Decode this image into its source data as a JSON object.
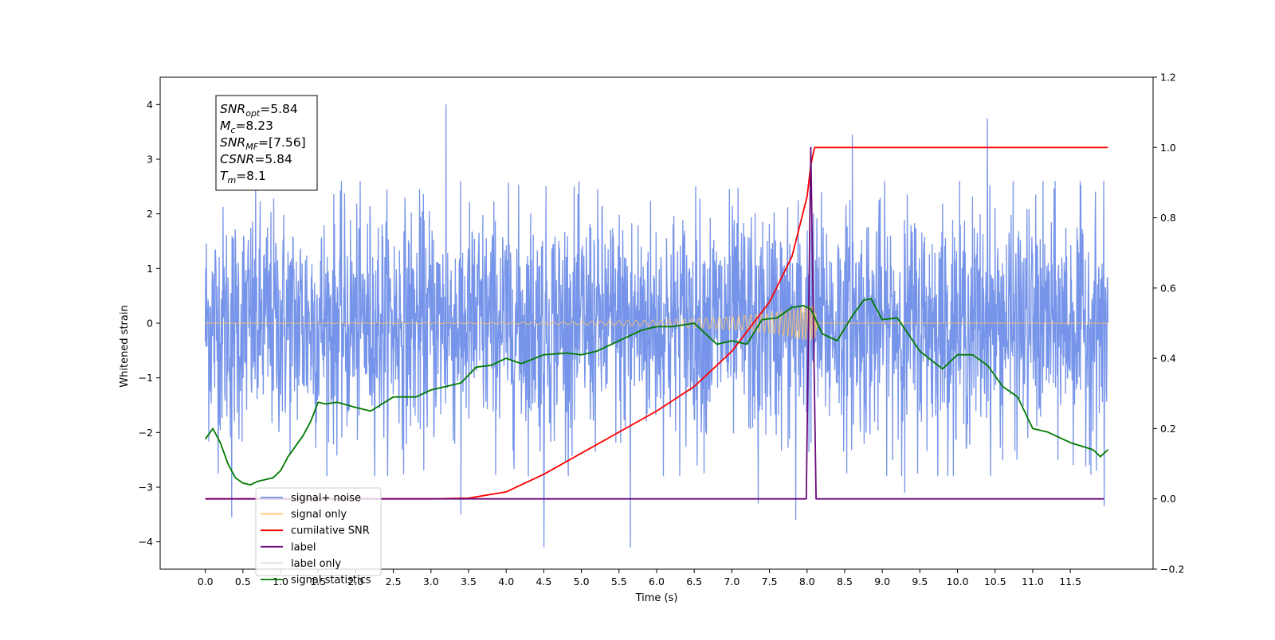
{
  "chart_data": {
    "type": "line",
    "xlabel": "Time (s)",
    "ylabel": "Whitened strain",
    "xlim": [
      -0.6,
      12.6
    ],
    "ylim": [
      -4.5,
      4.5
    ],
    "y2lim": [
      -0.2,
      1.2
    ],
    "grid": false,
    "legend_position": "lower-left",
    "x_ticks": [
      "0.0",
      "0.5",
      "1.0",
      "1.5",
      "2.0",
      "2.5",
      "3.0",
      "3.5",
      "4.0",
      "4.5",
      "5.0",
      "5.5",
      "6.0",
      "6.5",
      "7.0",
      "7.5",
      "8.0",
      "8.5",
      "9.0",
      "9.5",
      "10.0",
      "10.5",
      "11.0",
      "11.5"
    ],
    "y_ticks": [
      "4",
      "3",
      "2",
      "1",
      "0",
      "−1",
      "−2",
      "−3",
      "−4"
    ],
    "y2_ticks": [
      "1.2",
      "1.0",
      "0.8",
      "0.6",
      "0.4",
      "0.2",
      "0.0",
      "−0.2"
    ],
    "info_box": [
      {
        "base": "SNR",
        "sub": "opt",
        "value": "=5.84"
      },
      {
        "base": "M",
        "sub": "c",
        "value": "=8.23"
      },
      {
        "base": "SNR",
        "sub": "MF",
        "value": "=[7.56]"
      },
      {
        "base": "CSNR",
        "sub": "",
        "value": "=5.84"
      },
      {
        "base": "T",
        "sub": "m",
        "value": "=8.1"
      }
    ],
    "legend": [
      {
        "label": "signal+ noise",
        "color": "#6f8ee8"
      },
      {
        "label": "signal only",
        "color": "#ffc46a"
      },
      {
        "label": "cumilative SNR",
        "color": "#ff0000"
      },
      {
        "label": "label",
        "color": "#6a0a7a"
      },
      {
        "label": "label only",
        "color": "#dcdcdc"
      },
      {
        "label": "signal statistics",
        "color": "#007a00"
      }
    ],
    "series": [
      {
        "name": "signal+ noise",
        "axis": "left",
        "color": "#6f8ee8",
        "x_range": [
          0.0,
          12.0
        ],
        "amplitude_envelope": [
          -2.8,
          2.6
        ],
        "peak_spikes": [
          {
            "x": 3.2,
            "y": 4.0
          },
          {
            "x": 10.4,
            "y": 3.75
          },
          {
            "x": 8.6,
            "y": 3.45
          },
          {
            "x": 4.5,
            "y": -4.1
          },
          {
            "x": 5.65,
            "y": -4.1
          },
          {
            "x": 8.6,
            "y": -3.7
          },
          {
            "x": 0.35,
            "y": -3.55
          },
          {
            "x": 3.4,
            "y": -3.5
          },
          {
            "x": 7.85,
            "y": -3.6
          },
          {
            "x": 11.95,
            "y": -3.35
          },
          {
            "x": 9.3,
            "y": -3.1
          },
          {
            "x": 7.35,
            "y": -3.3
          }
        ]
      },
      {
        "name": "signal only",
        "axis": "left",
        "color": "#ffc46a",
        "envelope": [
          [
            0.0,
            0.0
          ],
          [
            3.5,
            0.01
          ],
          [
            5.0,
            0.03
          ],
          [
            6.0,
            0.06
          ],
          [
            6.5,
            0.08
          ],
          [
            7.0,
            0.12
          ],
          [
            7.5,
            0.18
          ],
          [
            7.8,
            0.25
          ],
          [
            8.0,
            0.32
          ],
          [
            8.1,
            0.32
          ],
          [
            8.15,
            0.0
          ],
          [
            12.0,
            0.0
          ]
        ]
      },
      {
        "name": "cumilative SNR",
        "axis": "right",
        "color": "#ff0000",
        "points": [
          [
            0.0,
            0.0
          ],
          [
            2.5,
            0.0
          ],
          [
            3.0,
            0.0
          ],
          [
            3.5,
            0.002
          ],
          [
            4.0,
            0.02
          ],
          [
            4.5,
            0.07
          ],
          [
            5.0,
            0.13
          ],
          [
            5.5,
            0.19
          ],
          [
            6.0,
            0.25
          ],
          [
            6.5,
            0.32
          ],
          [
            7.0,
            0.42
          ],
          [
            7.5,
            0.56
          ],
          [
            7.8,
            0.69
          ],
          [
            8.0,
            0.86
          ],
          [
            8.05,
            0.95
          ],
          [
            8.1,
            1.0
          ],
          [
            12.0,
            1.0
          ]
        ]
      },
      {
        "name": "label",
        "axis": "right",
        "color": "#6a0a7a",
        "points": [
          [
            0.0,
            0.0
          ],
          [
            7.99,
            0.0
          ],
          [
            8.05,
            1.0
          ],
          [
            8.12,
            0.0
          ],
          [
            11.95,
            0.0
          ]
        ]
      },
      {
        "name": "signal statistics",
        "axis": "right",
        "color": "#007a00",
        "points": [
          [
            0.0,
            0.17
          ],
          [
            0.1,
            0.2
          ],
          [
            0.2,
            0.16
          ],
          [
            0.3,
            0.1
          ],
          [
            0.4,
            0.06
          ],
          [
            0.5,
            0.045
          ],
          [
            0.6,
            0.04
          ],
          [
            0.7,
            0.05
          ],
          [
            0.9,
            0.06
          ],
          [
            1.0,
            0.08
          ],
          [
            1.1,
            0.12
          ],
          [
            1.3,
            0.18
          ],
          [
            1.4,
            0.22
          ],
          [
            1.5,
            0.275
          ],
          [
            1.6,
            0.27
          ],
          [
            1.75,
            0.275
          ],
          [
            2.0,
            0.26
          ],
          [
            2.2,
            0.25
          ],
          [
            2.5,
            0.29
          ],
          [
            2.8,
            0.29
          ],
          [
            3.0,
            0.31
          ],
          [
            3.2,
            0.32
          ],
          [
            3.4,
            0.33
          ],
          [
            3.6,
            0.375
          ],
          [
            3.8,
            0.38
          ],
          [
            4.0,
            0.4
          ],
          [
            4.2,
            0.385
          ],
          [
            4.5,
            0.41
          ],
          [
            4.8,
            0.415
          ],
          [
            5.0,
            0.41
          ],
          [
            5.2,
            0.42
          ],
          [
            5.5,
            0.45
          ],
          [
            5.8,
            0.48
          ],
          [
            6.0,
            0.49
          ],
          [
            6.2,
            0.49
          ],
          [
            6.5,
            0.5
          ],
          [
            6.8,
            0.44
          ],
          [
            7.0,
            0.45
          ],
          [
            7.2,
            0.44
          ],
          [
            7.4,
            0.51
          ],
          [
            7.6,
            0.515
          ],
          [
            7.8,
            0.545
          ],
          [
            7.95,
            0.55
          ],
          [
            8.05,
            0.54
          ],
          [
            8.2,
            0.47
          ],
          [
            8.4,
            0.45
          ],
          [
            8.6,
            0.52
          ],
          [
            8.75,
            0.565
          ],
          [
            8.85,
            0.57
          ],
          [
            9.0,
            0.51
          ],
          [
            9.2,
            0.515
          ],
          [
            9.5,
            0.42
          ],
          [
            9.8,
            0.37
          ],
          [
            10.0,
            0.41
          ],
          [
            10.2,
            0.41
          ],
          [
            10.4,
            0.38
          ],
          [
            10.6,
            0.32
          ],
          [
            10.8,
            0.29
          ],
          [
            11.0,
            0.2
          ],
          [
            11.2,
            0.19
          ],
          [
            11.5,
            0.16
          ],
          [
            11.8,
            0.14
          ],
          [
            11.9,
            0.12
          ],
          [
            12.0,
            0.14
          ]
        ]
      }
    ]
  }
}
